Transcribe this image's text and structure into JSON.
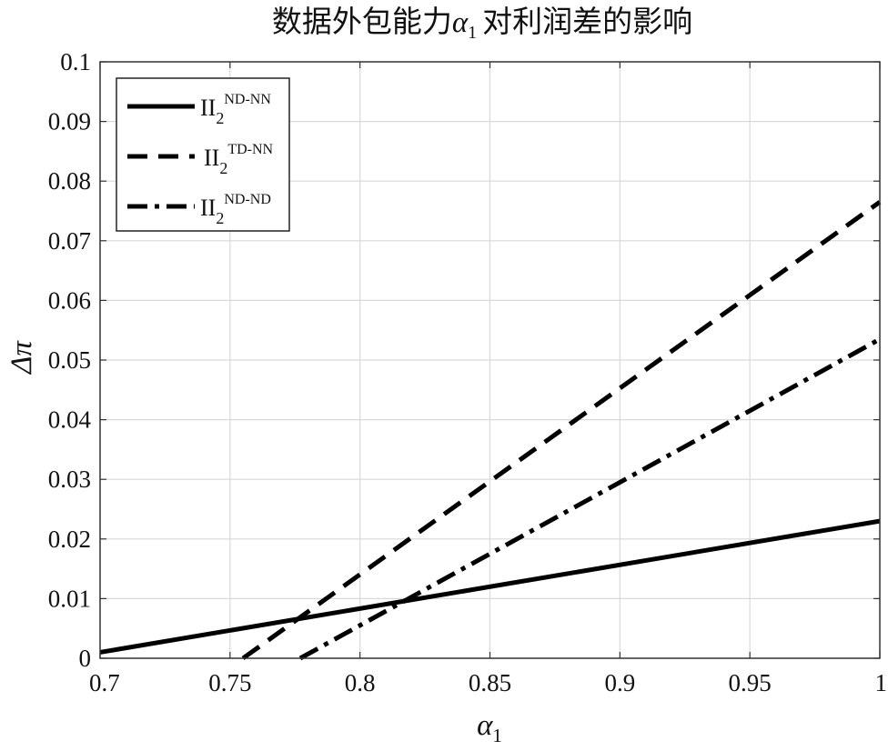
{
  "chart_data": {
    "type": "line",
    "title": {
      "prefix": "数据外包能力",
      "symbol": "α",
      "symbol_sub": "1",
      "suffix": "对利润差的影响"
    },
    "xlabel": {
      "symbol": "α",
      "sub": "1"
    },
    "ylabel": "Δπ",
    "xlim": [
      0.7,
      1.0
    ],
    "ylim": [
      0,
      0.1
    ],
    "x_ticks": [
      "0.7",
      "0.75",
      "0.8",
      "0.85",
      "0.9",
      "0.95",
      "1"
    ],
    "y_ticks": [
      "0",
      "0.01",
      "0.02",
      "0.03",
      "0.04",
      "0.05",
      "0.06",
      "0.07",
      "0.08",
      "0.09",
      "0.1"
    ],
    "grid": true,
    "legend_position": "top-left",
    "series": [
      {
        "name": "II2ND-NN",
        "base": "II",
        "sub": "2",
        "sup": "ND-NN",
        "style": "solid",
        "x": [
          0.7,
          1.0
        ],
        "y": [
          0.001,
          0.023
        ]
      },
      {
        "name": "II2TD-NN",
        "base": "II",
        "sub": "2",
        "sup": "TD-NN",
        "style": "dashed",
        "x": [
          0.755,
          1.0
        ],
        "y": [
          0.0,
          0.0765
        ]
      },
      {
        "name": "II2ND-ND",
        "base": "II",
        "sub": "2",
        "sup": "ND-ND",
        "style": "dashdot",
        "x": [
          0.777,
          1.0
        ],
        "y": [
          0.0,
          0.0535
        ]
      }
    ],
    "colors": {
      "line": "#000000",
      "grid": "#d9d9d9",
      "axis": "#333333"
    }
  }
}
